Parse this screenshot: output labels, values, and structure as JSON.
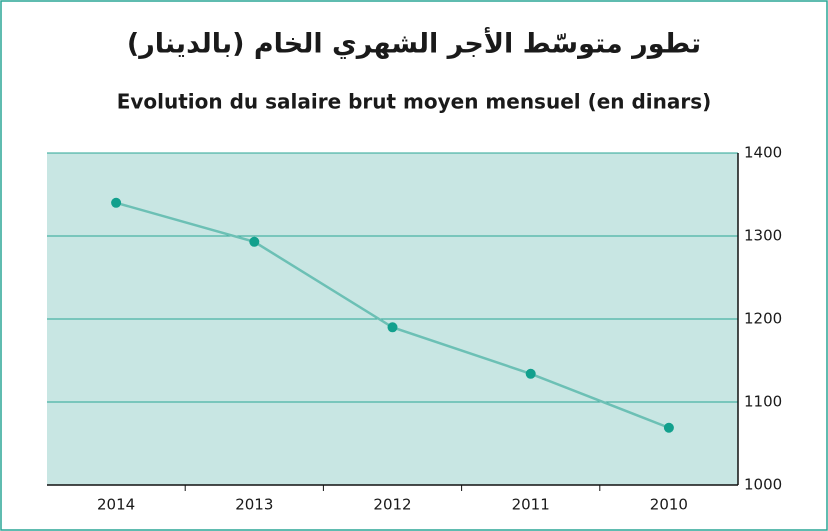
{
  "chart_data": {
    "type": "line",
    "title": "تطور متوسّط الأجر الشهري الخام (بالدينار)",
    "subtitle": "Evolution du salaire brut moyen mensuel (en dinars)",
    "categories": [
      "2014",
      "2013",
      "2012",
      "2011",
      "2010"
    ],
    "values": [
      1340,
      1293,
      1190,
      1134,
      1069
    ],
    "color": "#6cc0b5",
    "marker_color": "#12a08d",
    "background": "#c8e6e3",
    "grid_color": "#2aa596",
    "ylim": [
      1000,
      1400
    ],
    "yticks": [
      1000,
      1100,
      1200,
      1300,
      1400
    ],
    "grid": true,
    "y_axis_side": "right"
  }
}
